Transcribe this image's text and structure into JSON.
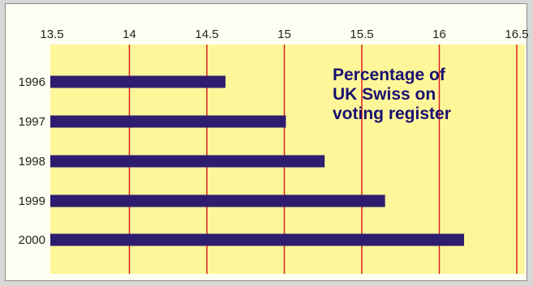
{
  "chart_data": {
    "type": "bar",
    "orientation": "horizontal",
    "title": "Percentage of UK Swiss on voting register",
    "title_lines": [
      "Percentage of",
      "UK Swiss on",
      "voting register"
    ],
    "categories": [
      "1996",
      "1997",
      "1998",
      "1999",
      "2000"
    ],
    "values": [
      14.62,
      15.01,
      15.26,
      15.65,
      16.16
    ],
    "xlim": [
      13.5,
      16.5
    ],
    "xticks": [
      "13.5",
      "14",
      "14.5",
      "15",
      "15.5",
      "16",
      "16.5"
    ],
    "tick_positions": [
      13.5,
      14,
      14.5,
      15,
      15.5,
      16,
      16.5
    ],
    "xlabel": "",
    "ylabel": "",
    "grid": "vertical",
    "colors": {
      "plot_background": "#fdf79a",
      "bar": "#2e1d6e",
      "gridline": "#e02020",
      "title": "#1a1070"
    }
  }
}
